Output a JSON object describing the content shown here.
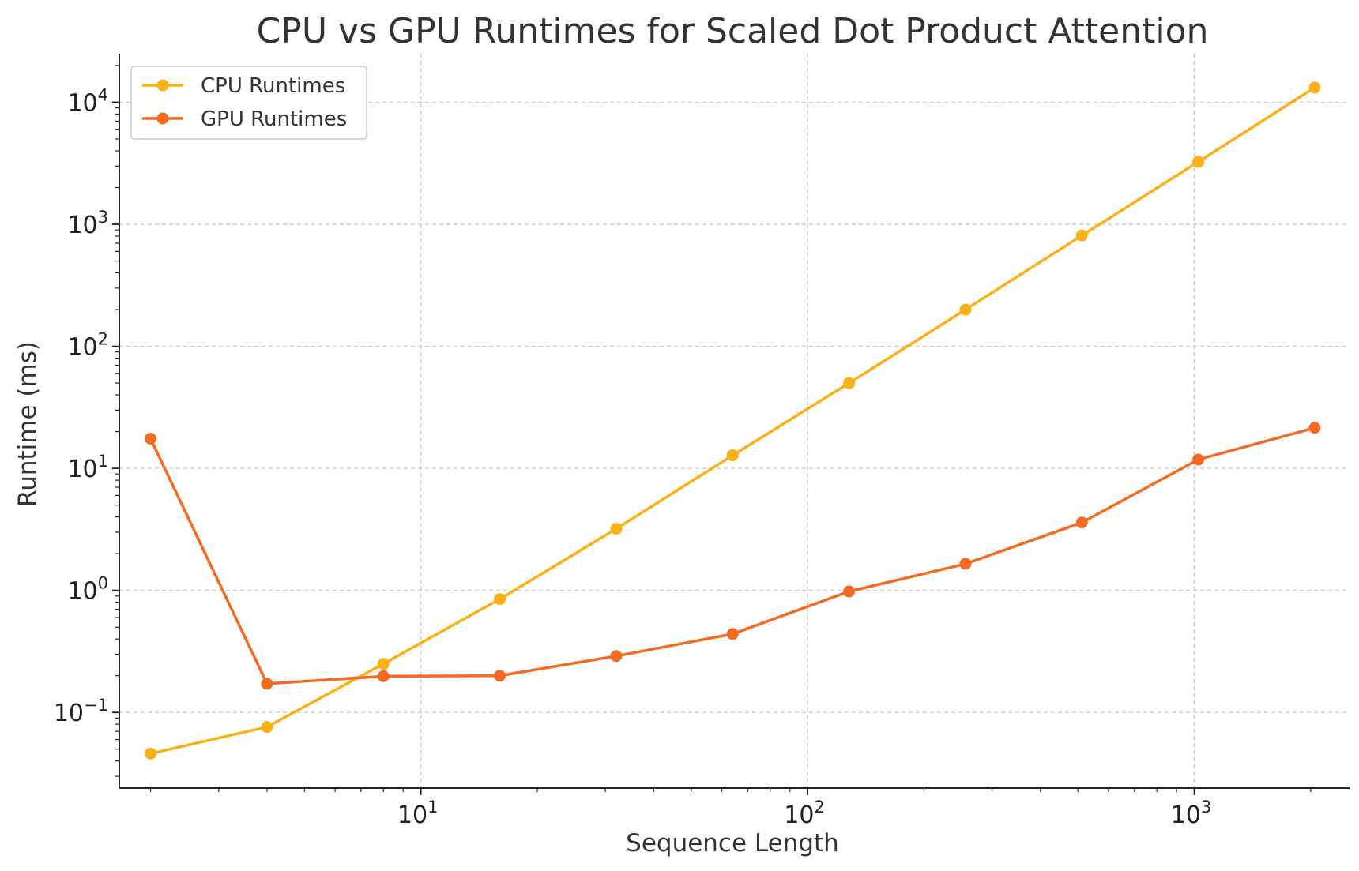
{
  "chart_data": {
    "type": "line",
    "title": "CPU vs GPU Runtimes for Scaled Dot Product Attention",
    "xlabel": "Sequence Length",
    "ylabel": "Runtime (ms)",
    "xscale": "log",
    "yscale": "log",
    "xlim": [
      1.66,
      2520
    ],
    "ylim": [
      0.024,
      25000
    ],
    "grid": true,
    "legend_position": "top-left",
    "x": [
      2,
      4,
      8,
      16,
      32,
      64,
      128,
      256,
      512,
      1024,
      2048
    ],
    "series": [
      {
        "name": "CPU Runtimes",
        "color": "#fbb015",
        "values": [
          0.046,
          0.076,
          0.25,
          0.85,
          3.2,
          12.8,
          50,
          200,
          810,
          3250,
          13200
        ]
      },
      {
        "name": "GPU Runtimes",
        "color": "#f26b21",
        "values": [
          17.5,
          0.172,
          0.198,
          0.2,
          0.29,
          0.44,
          0.98,
          1.65,
          3.6,
          11.8,
          21.5
        ]
      }
    ],
    "x_ticks": [
      {
        "value": 10,
        "base": "10",
        "exp": "1"
      },
      {
        "value": 100,
        "base": "10",
        "exp": "2"
      },
      {
        "value": 1000,
        "base": "10",
        "exp": "3"
      }
    ],
    "y_ticks": [
      {
        "value": 0.1,
        "base": "10",
        "exp": "−1"
      },
      {
        "value": 1,
        "base": "10",
        "exp": "0"
      },
      {
        "value": 10,
        "base": "10",
        "exp": "1"
      },
      {
        "value": 100,
        "base": "10",
        "exp": "2"
      },
      {
        "value": 1000,
        "base": "10",
        "exp": "3"
      },
      {
        "value": 10000,
        "base": "10",
        "exp": "4"
      }
    ]
  }
}
